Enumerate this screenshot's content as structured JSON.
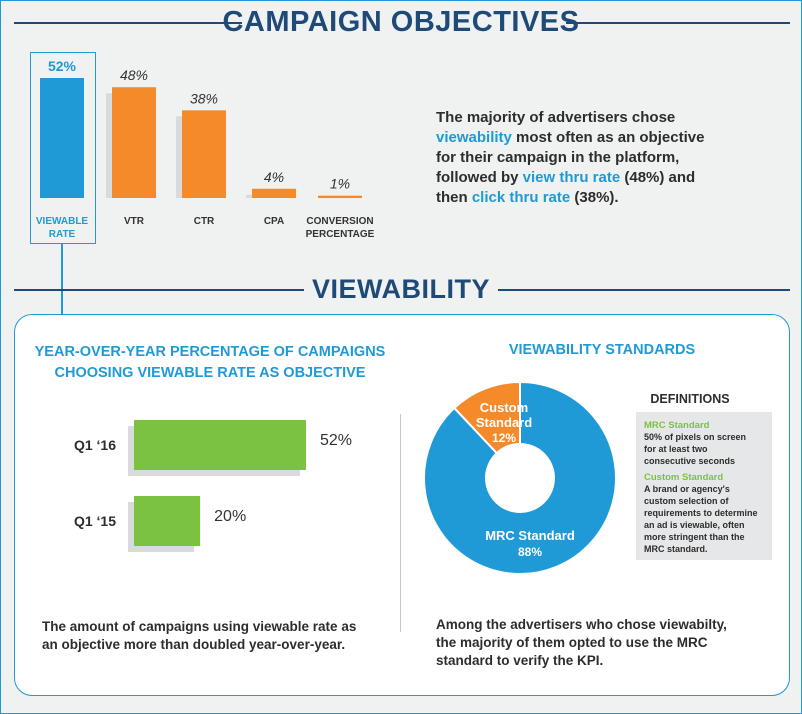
{
  "header": {
    "title": "CAMPAIGN OBJECTIVES"
  },
  "objectives_summary": {
    "line1": "The majority of advertisers chose",
    "term1": "viewability",
    "line2": " most often as an objective",
    "line3": "for their campaign in the platform,",
    "line4a": "followed by ",
    "term2": "view thru rate",
    "line4b": " (48%) and",
    "line5a": "then ",
    "term3": "click thru rate",
    "line5b": "  (38%)."
  },
  "section2": {
    "title": "VIEWABILITY",
    "yoy_title_line1": "YEAR-OVER-YEAR PERCENTAGE OF CAMPAIGNS",
    "yoy_title_line2": "CHOOSING VIEWABLE RATE AS OBJECTIVE",
    "yoy_footer_line1": "The amount of campaigns using viewable rate as",
    "yoy_footer_line2": "an objective more than doubled year-over-year.",
    "standards_title": "VIEWABILITY STANDARDS",
    "standards_footer_line1": "Among the advertisers who chose viewabilty,",
    "standards_footer_line2": "the majority of them opted to use the MRC",
    "standards_footer_line3": "standard to verify the KPI.",
    "definitions": {
      "title": "DEFINITIONS",
      "mrc_head": "MRC Standard",
      "mrc_lines": [
        "50% of pixels on screen",
        "for at least two",
        "consecutive seconds"
      ],
      "custom_head": "Custom Standard",
      "custom_lines": [
        "A brand or agency's",
        "custom selection of",
        "requirements to determine",
        "an ad is viewable, often",
        "more stringent than the",
        "MRC standard."
      ]
    }
  },
  "colors": {
    "blue": "#1f9ad6",
    "orange": "#f58a2a",
    "green": "#7cc242",
    "navy": "#1f4a78"
  },
  "chart_data": [
    {
      "type": "bar",
      "title": "CAMPAIGN OBJECTIVES",
      "categories": [
        [
          "VIEWABLE",
          "RATE"
        ],
        [
          "VTR"
        ],
        [
          "CTR"
        ],
        [
          "CPA"
        ],
        [
          "CONVERSION",
          "PERCENTAGE"
        ]
      ],
      "values": [
        52,
        48,
        38,
        4,
        1
      ],
      "value_labels": [
        "52%",
        "48%",
        "38%",
        "4%",
        "1%"
      ],
      "ylim": [
        0,
        52
      ],
      "highlight_index": 0
    },
    {
      "type": "bar",
      "orientation": "horizontal",
      "title": "YEAR-OVER-YEAR PERCENTAGE OF CAMPAIGNS CHOOSING VIEWABLE RATE AS OBJECTIVE",
      "categories": [
        "Q1 '16",
        "Q1 '15"
      ],
      "category_labels": [
        "Q1 ‘16",
        "Q1 ‘15"
      ],
      "values": [
        52,
        20
      ],
      "value_labels": [
        "52%",
        "20%"
      ],
      "xlim": [
        0,
        52
      ]
    },
    {
      "type": "pie",
      "title": "VIEWABILITY STANDARDS",
      "slices": [
        {
          "name": "Custom Standard",
          "label_lines": [
            "Custom",
            "Standard"
          ],
          "value": 12,
          "value_label": "12%"
        },
        {
          "name": "MRC Standard",
          "label_lines": [
            "MRC Standard"
          ],
          "value": 88,
          "value_label": "88%"
        }
      ]
    }
  ]
}
